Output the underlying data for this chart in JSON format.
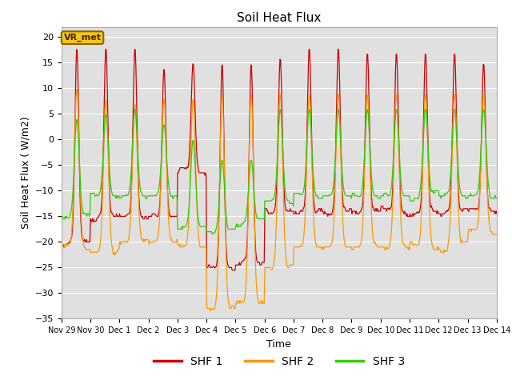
{
  "title": "Soil Heat Flux",
  "xlabel": "Time",
  "ylabel": "Soil Heat Flux ( W/m2)",
  "ylim": [
    -35,
    22
  ],
  "yticks": [
    -35,
    -30,
    -25,
    -20,
    -15,
    -10,
    -5,
    0,
    5,
    10,
    15,
    20
  ],
  "annotation_text": "VR_met",
  "legend_entries": [
    "SHF 1",
    "SHF 2",
    "SHF 3"
  ],
  "line_colors": [
    "#cc0000",
    "#ff9900",
    "#33cc00"
  ],
  "background_color": "#ffffff",
  "plot_bg_color": "#e0e0e0",
  "grid_color": "#ffffff",
  "title_fontsize": 11,
  "axis_fontsize": 9,
  "tick_fontsize": 8,
  "legend_fontsize": 10,
  "num_days": 15,
  "xtick_labels": [
    "Nov 29",
    "Nov 30",
    "Dec 1",
    "Dec 2",
    "Dec 3",
    "Dec 4",
    "Dec 5",
    "Dec 6",
    "Dec 7",
    "Dec 8",
    "Dec 9",
    "Dec 10",
    "Dec 11",
    "Dec 12",
    "Dec 13",
    "Dec 14"
  ]
}
